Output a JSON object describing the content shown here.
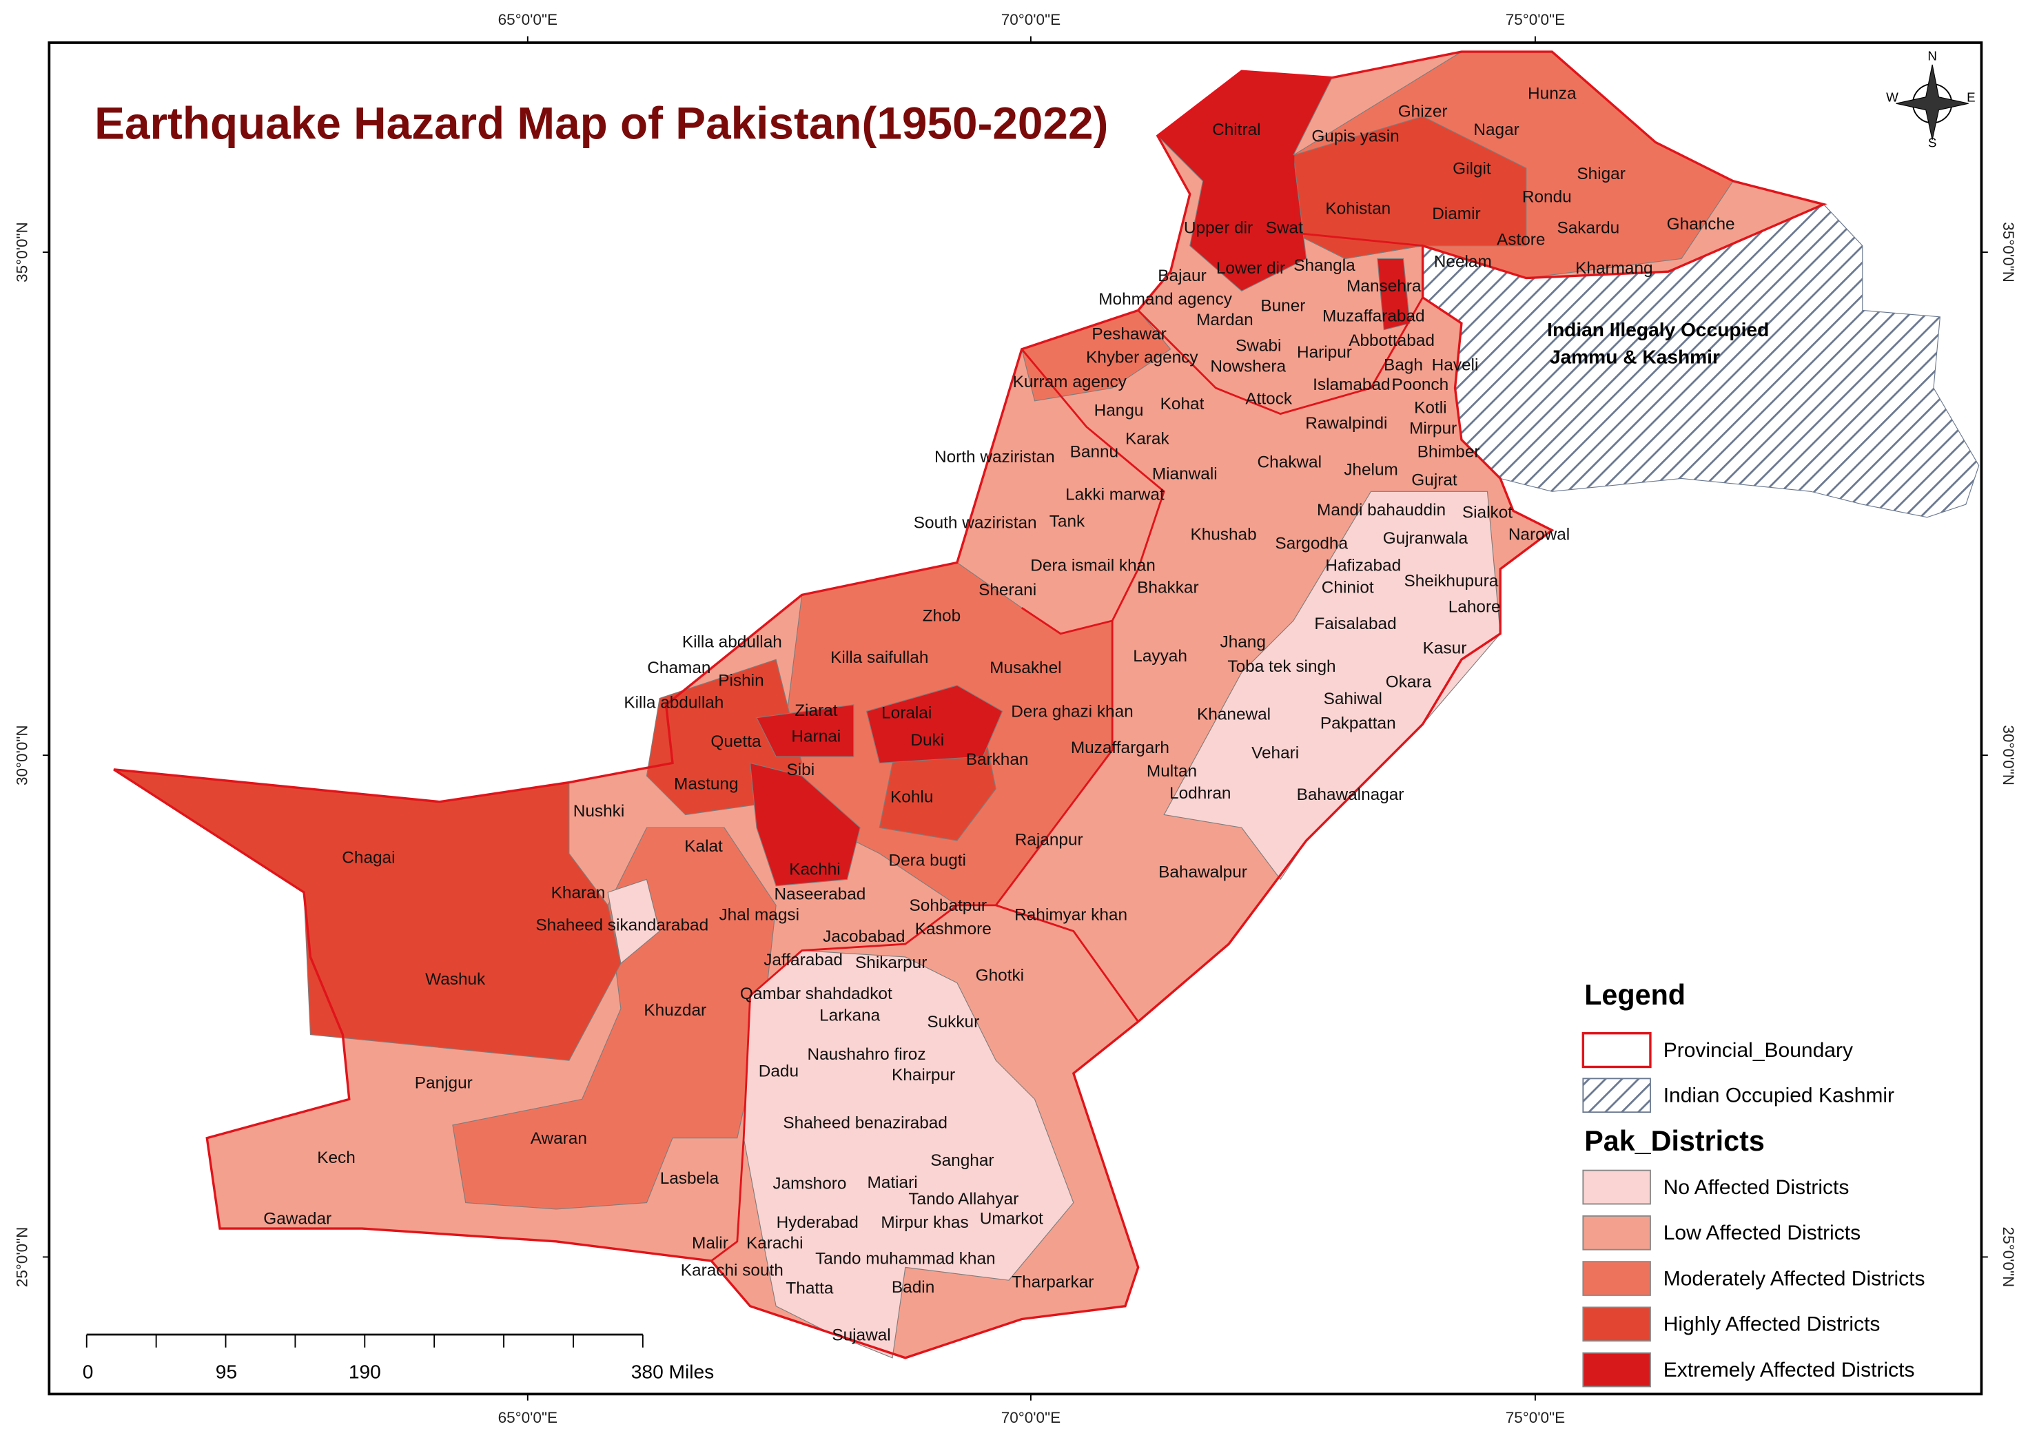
{
  "title": "Earthquake Hazard Map of Pakistan(1950-2022)",
  "graticule": {
    "top": [
      "65°0'0\"E",
      "70°0'0\"E",
      "75°0'0\"E"
    ],
    "bottom": [
      "65°0'0\"E",
      "70°0'0\"E",
      "75°0'0\"E"
    ],
    "left": [
      "35°0'0\"N",
      "30°0'0\"N",
      "25°0'0\"N"
    ],
    "right": [
      "35°0'0\"N",
      "30°0'0\"N",
      "25°0'0\"N"
    ]
  },
  "compass": {
    "n": "N",
    "s": "S",
    "e": "E",
    "w": "W"
  },
  "region_label": [
    "Indian Illegaly Occupied",
    "Jammu & Kashmir"
  ],
  "districts": [
    "Hunza",
    "Ghizer",
    "Chitral",
    "Gupis yasin",
    "Nagar",
    "Gilgit",
    "Shigar",
    "Rondu",
    "Kohistan",
    "Diamir",
    "Ghanche",
    "Upper dir",
    "Swat",
    "Sakardu",
    "Astore",
    "Neelam",
    "Kharmang",
    "Bajaur",
    "Lower dir",
    "Shangla",
    "Mansehra",
    "Mohmand agency",
    "Buner",
    "Muzaffarabad",
    "Mardan",
    "Peshawar",
    "Swabi",
    "Haripur",
    "Abbottabad",
    "Khyber agency",
    "Nowshera",
    "Bagh",
    "Haveli",
    "Kurram agency",
    "Islamabad",
    "Poonch",
    "Attock",
    "Hangu",
    "Kohat",
    "Kotli",
    "Rawalpindi",
    "Mirpur",
    "Karak",
    "Bhimber",
    "North waziristan",
    "Bannu",
    "Chakwal",
    "Jhelum",
    "Mianwali",
    "Gujrat",
    "Lakki marwat",
    "Mandi bahauddin",
    "Sialkot",
    "South waziristan",
    "Tank",
    "Narowal",
    "Khushab",
    "Sargodha",
    "Gujranwala",
    "Hafizabad",
    "Dera ismail khan",
    "Chiniot",
    "Sheikhupura",
    "Sherani",
    "Bhakkar",
    "Lahore",
    "Zhob",
    "Faisalabad",
    "Killa abdullah",
    "Kasur",
    "Layyah",
    "Killa saifullah",
    "Chaman",
    "Jhang",
    "Toba tek singh",
    "Musakhel",
    "Pishin",
    "Okara",
    "Killa abdullah",
    "Dera ghazi khan",
    "Ziarat",
    "Loralai",
    "Khanewal",
    "Sahiwal",
    "Quetta",
    "Harnai",
    "Duki",
    "Pakpattan",
    "Muzaffargarh",
    "Vehari",
    "Barkhan",
    "Sibi",
    "Multan",
    "Mastung",
    "Lodhran",
    "Kohlu",
    "Bahawalnagar",
    "Nushki",
    "Kalat",
    "Kachhi",
    "Rajanpur",
    "Dera bugti",
    "Chagai",
    "Bahawalpur",
    "Kharan",
    "Naseerabad",
    "Sohbatpur",
    "Jhal magsi",
    "Shaheed sikandarabad",
    "Rahimyar khan",
    "Jacobabad",
    "Kashmore",
    "Washuk",
    "Jaffarabad",
    "Shikarpur",
    "Ghotki",
    "Khuzdar",
    "Qambar shahdadkot",
    "Larkana",
    "Sukkur",
    "Naushahro firoz",
    "Panjgur",
    "Dadu",
    "Khairpur",
    "Shaheed benazirabad",
    "Awaran",
    "Kech",
    "Sanghar",
    "Lasbela",
    "Jamshoro",
    "Matiari",
    "Tando Allahyar",
    "Gawadar",
    "Hyderabad",
    "Mirpur khas",
    "Umarkot",
    "Malir",
    "Karachi",
    "Tando muhammad khan",
    "Karachi south",
    "Thatta",
    "Badin",
    "Tharparkar",
    "Sujawal"
  ],
  "legend": {
    "title": "Legend",
    "items": [
      "Provincial_Boundary",
      "Indian Occupied Kashmir"
    ],
    "subtitle": "Pak_Districts",
    "classes": [
      {
        "label": "No Affected Districts",
        "color": "#fad4d2"
      },
      {
        "label": "Low Affected Districts",
        "color": "#f4a08e"
      },
      {
        "label": "Moderately Affected Districts",
        "color": "#ee735d"
      },
      {
        "label": "Highly Affected Districts",
        "color": "#e24632"
      },
      {
        "label": "Extremely Affected Districts",
        "color": "#d7191c"
      }
    ]
  },
  "scale_bar": [
    "0",
    "95",
    "190",
    "380 Miles"
  ]
}
